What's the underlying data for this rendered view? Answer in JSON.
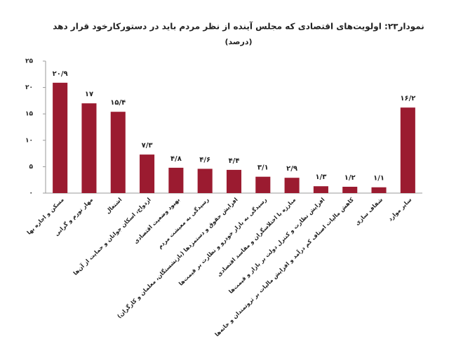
{
  "chart_data": {
    "type": "bar",
    "title": "نمودار۲۳: اولویت‌های اقتصادی که مجلس آینده از نظر مردم باید در دستورکارخود قرار دهد",
    "subtitle": "(درصد)",
    "categories": [
      "مسکن و اجاره بها",
      "مهار تورم و گرانی",
      "اشتغال",
      "ازدواج، اسکان جوانان و حمایت از آن‌ها",
      "بهبود وضعیت اقتصادی",
      "رسیدگی به معیشت مردم",
      "افزایش حقوق و دستمزدها (بازنشستگان، معلمان و کارگران)",
      "رسیدگی به بازار خودرو و نظارت بر قیمت‌ها",
      "مبارزه با اختلاسگران و مفاسد اقتصادی",
      "افزایش نظارت و کنترل دولت بر بازار و قیمت‌ها",
      "کاهش مالیات اصناف کم درآمد و افزایش مالیات بر ثروتمندان و خانه‌ها",
      "شفاف سازی",
      "سایر موارد"
    ],
    "values": [
      20.9,
      17,
      15.4,
      7.3,
      4.8,
      4.6,
      4.4,
      3.1,
      2.9,
      1.3,
      1.2,
      1.1,
      16.2
    ],
    "value_labels": [
      "۲۰/۹",
      "۱۷",
      "۱۵/۴",
      "۷/۳",
      "۴/۸",
      "۴/۶",
      "۴/۴",
      "۳/۱",
      "۲/۹",
      "۱/۳",
      "۱/۲",
      "۱/۱",
      "۱۶/۲"
    ],
    "color": "#9b1b30",
    "ylim": [
      0,
      25
    ],
    "yticks": [
      {
        "value": 0,
        "label": "۰"
      },
      {
        "value": 5,
        "label": "۵"
      },
      {
        "value": 10,
        "label": "۱۰"
      },
      {
        "value": 15,
        "label": "۱۵"
      },
      {
        "value": 20,
        "label": "۲۰"
      },
      {
        "value": 25,
        "label": "۲۵"
      }
    ]
  }
}
